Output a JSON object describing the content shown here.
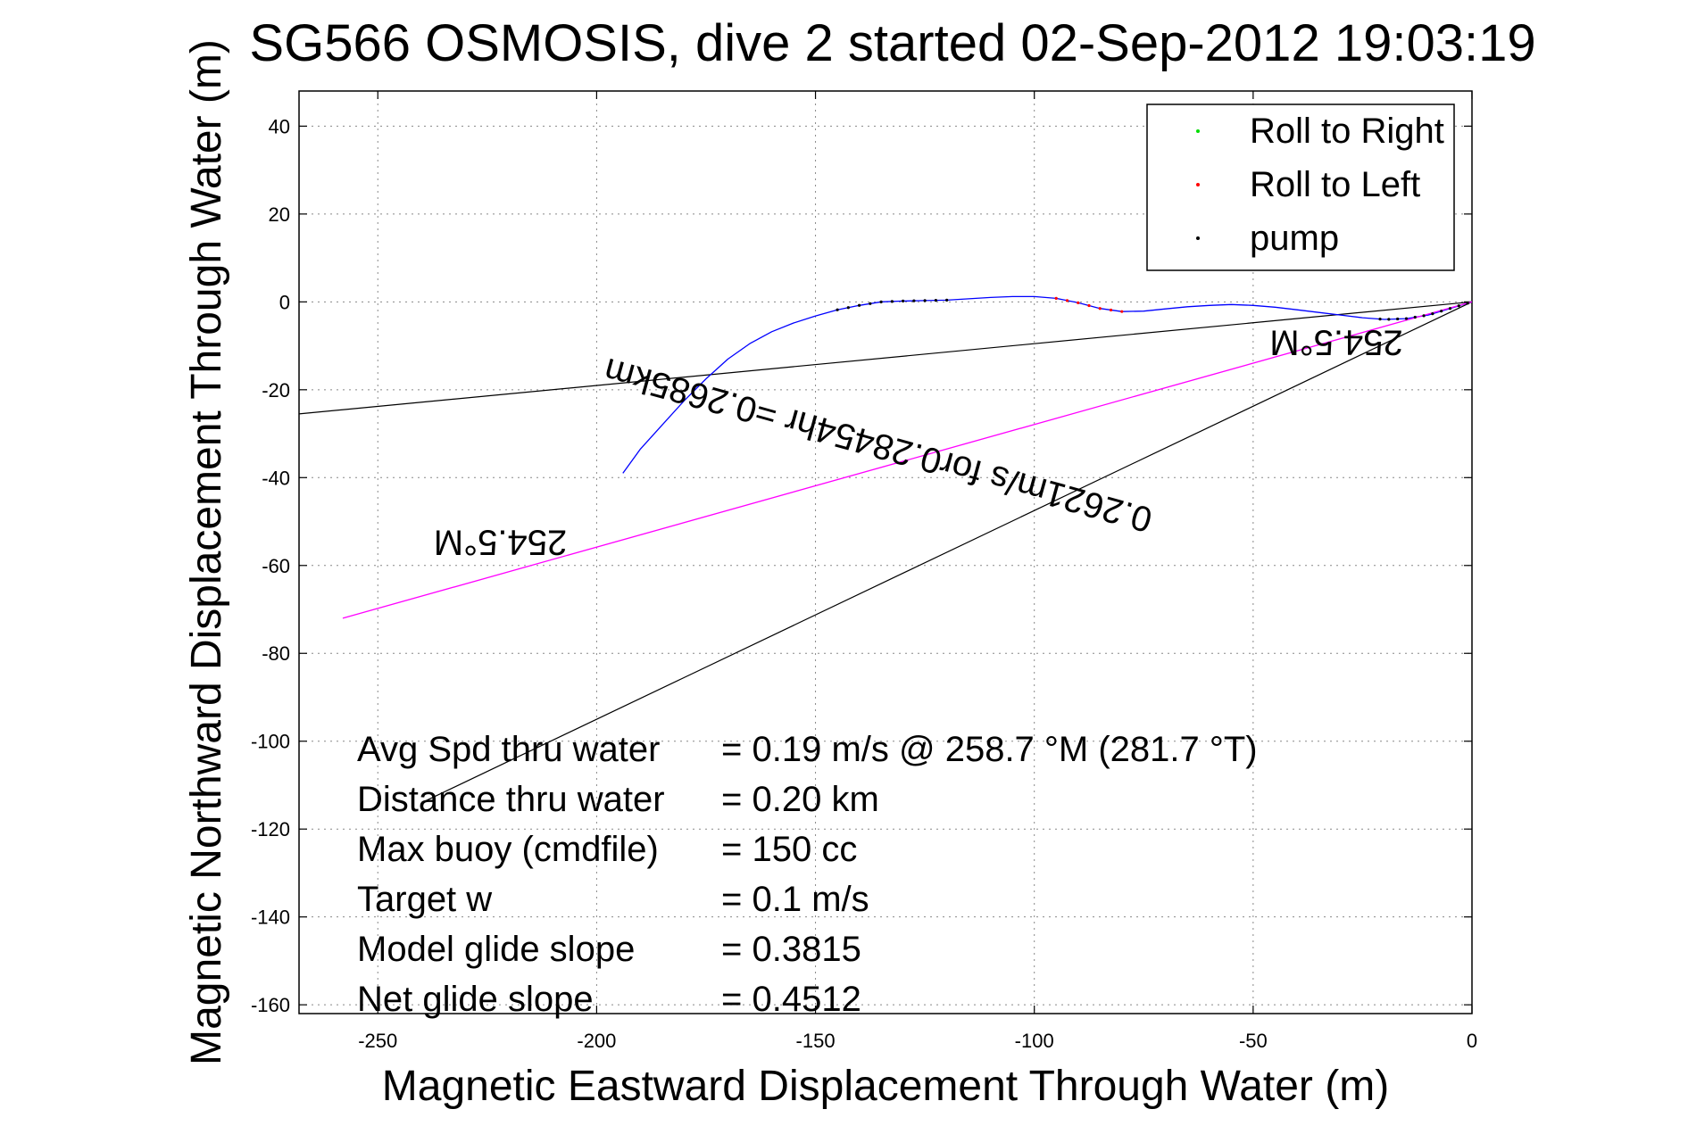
{
  "chart_data": {
    "type": "line",
    "title": "SG566 OSMOSIS, dive 2 started 02-Sep-2012 19:03:19",
    "xlabel": "Magnetic Eastward Displacement Through Water (m)",
    "ylabel": "Magnetic Northward Displacement Through Water (m)",
    "xlim": [
      -268,
      0
    ],
    "ylim": [
      -162,
      48
    ],
    "xticks": [
      -250,
      -200,
      -150,
      -100,
      -50,
      0
    ],
    "xtick_labels": [
      "-250",
      "-200",
      "-150",
      "-100",
      "-50",
      "0"
    ],
    "yticks": [
      40,
      20,
      0,
      -20,
      -40,
      -60,
      -80,
      -100,
      -120,
      -140,
      -160
    ],
    "ytick_labels": [
      "40",
      "20",
      "0",
      "-20",
      "-40",
      "-60",
      "-80",
      "-100",
      "-120",
      "-140",
      "-160"
    ],
    "grid": true,
    "legend_position": "top-right",
    "legend": [
      {
        "label": "Roll to Right",
        "color": "#00dd00"
      },
      {
        "label": "Roll to Left",
        "color": "#ff0000"
      },
      {
        "label": "pump",
        "color": "#000000"
      }
    ],
    "series": [
      {
        "color": "#0000ff",
        "x": [
          0,
          -5,
          -10,
          -15,
          -20,
          -25,
          -30,
          -35,
          -40,
          -45,
          -50,
          -55,
          -60,
          -65,
          -70,
          -75,
          -80,
          -85,
          -90,
          -95,
          -100,
          -105,
          -110,
          -115,
          -120,
          -125,
          -130,
          -135,
          -140,
          -145,
          -150,
          -155,
          -160,
          -165,
          -170,
          -175,
          -180,
          -185,
          -190,
          -194
        ],
        "y": [
          0,
          -1.5,
          -3,
          -3.8,
          -4,
          -3.6,
          -3,
          -2.4,
          -1.8,
          -1.2,
          -0.8,
          -0.6,
          -0.8,
          -1.1,
          -1.6,
          -2.1,
          -2.2,
          -1.5,
          -0.2,
          0.8,
          1.2,
          1.2,
          1.0,
          0.7,
          0.4,
          0.3,
          0.2,
          0,
          -0.8,
          -1.8,
          -3.2,
          -4.8,
          -6.8,
          -9.5,
          -13,
          -17.5,
          -22.5,
          -28,
          -33.5,
          -39
        ]
      },
      {
        "color": "#ff00ff",
        "x": [
          0,
          -258
        ],
        "y": [
          0,
          -72
        ]
      }
    ],
    "reference_lines": [
      {
        "color": "#000000",
        "x": [
          0,
          -268
        ],
        "y": [
          0,
          -25.5
        ]
      },
      {
        "color": "#000000",
        "x": [
          0,
          -240
        ],
        "y": [
          0,
          -114
        ]
      }
    ],
    "marker_points": [
      {
        "color": "#000000",
        "x": [
          -120,
          -122.5,
          -125,
          -127.5,
          -130,
          -132.5,
          -135,
          -137.5,
          -140,
          -142.5,
          -145
        ]
      },
      {
        "color": "#ff0000",
        "x": [
          -80,
          -82.5,
          -85,
          -87.5,
          -90,
          -92.5,
          -95
        ]
      },
      {
        "color": "#000000",
        "x": [
          -1,
          -3,
          -5,
          -7,
          -9,
          -11,
          -13,
          -15,
          -17,
          -19,
          -21
        ]
      }
    ],
    "annotations": [
      {
        "text": "254.5°M",
        "x": -222,
        "y": -52,
        "rotation": 180
      },
      {
        "text": "0.2621m/s for0.28454hr =0.2685km",
        "x": -135,
        "y": -30,
        "rotation": -164.5
      },
      {
        "text": "254.5°M",
        "x": -31,
        "y": -6.5,
        "rotation": 180
      }
    ],
    "stats": [
      {
        "label": "Avg Spd thru water",
        "value": "=  0.19 m/s @ 258.7 °M (281.7 °T)"
      },
      {
        "label": "Distance thru water",
        "value": "=  0.20 km"
      },
      {
        "label": "Max buoy (cmdfile)",
        "value": "= 150 cc"
      },
      {
        "label": "Target w",
        "value": "= 0.1 m/s"
      },
      {
        "label": "Model glide slope",
        "value": "= 0.3815"
      },
      {
        "label": "Net glide slope",
        "value": "= 0.4512"
      }
    ]
  }
}
